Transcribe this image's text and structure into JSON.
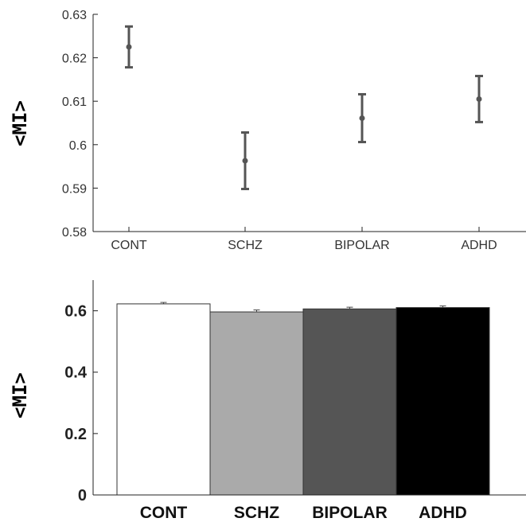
{
  "chart_data": [
    {
      "type": "scatter",
      "title": "",
      "xlabel": "",
      "ylabel": "<MI>",
      "categories": [
        "CONT",
        "SCHZ",
        "BIPOLAR",
        "ADHD"
      ],
      "values": [
        0.6225,
        0.5963,
        0.6061,
        0.6105
      ],
      "error_low": [
        0.6178,
        0.5898,
        0.6006,
        0.6052
      ],
      "error_high": [
        0.6272,
        0.6028,
        0.6116,
        0.6158
      ],
      "ylim": [
        0.58,
        0.63
      ],
      "yticks": [
        "0.58",
        "0.59",
        "0.6",
        "0.61",
        "0.62",
        "0.63"
      ],
      "ytick_values": [
        0.58,
        0.59,
        0.6,
        0.61,
        0.62,
        0.63
      ],
      "grid": false,
      "marker_color": "#555555"
    },
    {
      "type": "bar",
      "title": "",
      "xlabel": "",
      "ylabel": "<MI>",
      "categories": [
        "CONT",
        "SCHZ",
        "BIPOLAR",
        "ADHD"
      ],
      "values": [
        0.6225,
        0.5963,
        0.6061,
        0.6105
      ],
      "error_high": [
        0.6272,
        0.6028,
        0.6116,
        0.6158
      ],
      "ylim": [
        0,
        0.7
      ],
      "yticks": [
        "0",
        "0.2",
        "0.4",
        "0.6"
      ],
      "ytick_values": [
        0,
        0.2,
        0.4,
        0.6
      ],
      "grid": false,
      "bar_colors": [
        "#ffffff",
        "#aaaaaa",
        "#555555",
        "#000000"
      ]
    }
  ]
}
